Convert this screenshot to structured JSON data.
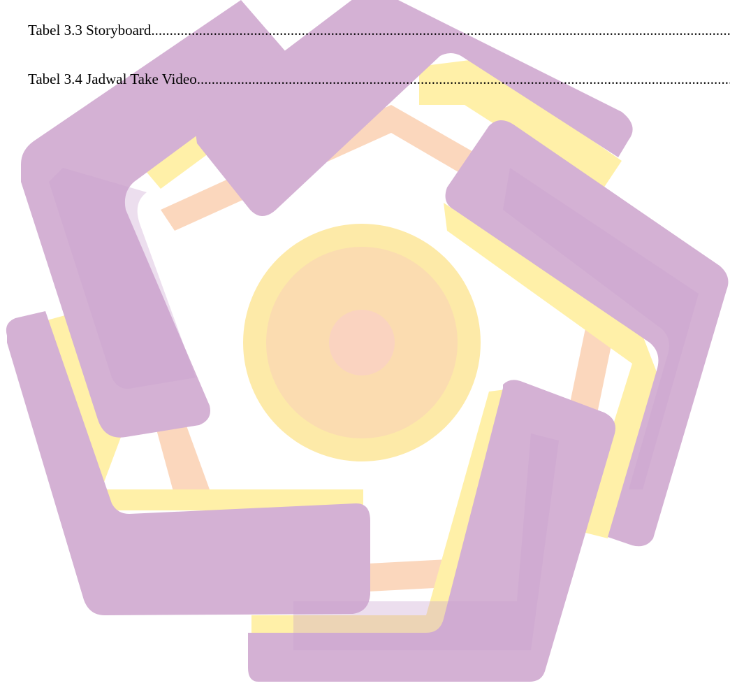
{
  "toc": {
    "entries": [
      {
        "label": "Tabel 3.3 Storyboard"
      },
      {
        "label": "Tabel 3.4 Jadwal Take Video"
      }
    ]
  },
  "watermark": {
    "icon": "amikom-logo-watermark",
    "colors": {
      "purple": "#d4b1d4",
      "purple_dark": "#cfa9cf",
      "yellow": "#fff0a8",
      "peach": "#fcd6b0",
      "orange": "#f9c7a4",
      "center": "#fad3c0",
      "ring": "#fdeaa8"
    }
  }
}
